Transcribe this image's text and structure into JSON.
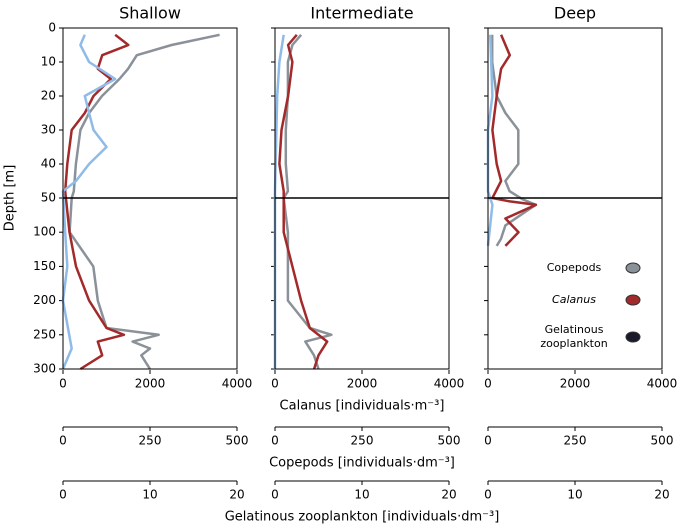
{
  "chart_data": [
    {
      "type": "line",
      "title": "Shallow",
      "ylabel": "Depth [m]",
      "ylim": [
        0,
        300
      ],
      "ybreak": 50,
      "yticks": [
        0,
        10,
        20,
        30,
        40,
        50,
        100,
        150,
        200,
        250,
        300
      ],
      "xlim": [
        0,
        4000
      ],
      "xticks": [
        0,
        2000,
        4000
      ],
      "x2lim": [
        0,
        500
      ],
      "x2ticks": [
        0,
        250,
        500
      ],
      "x3lim": [
        0,
        20
      ],
      "x3ticks": [
        0,
        10,
        20
      ],
      "series": [
        {
          "name": "Copepods",
          "color": "#8a9199",
          "axis": "x2",
          "y": [
            2,
            5,
            8,
            12,
            15,
            20,
            25,
            30,
            40,
            48,
            50,
            100,
            150,
            200,
            240,
            250,
            260,
            270,
            280,
            300
          ],
          "values": [
            450,
            312,
            212,
            187,
            162,
            112,
            75,
            50,
            37,
            31,
            25,
            19,
            87,
            100,
            125,
            275,
            200,
            250,
            225,
            250
          ]
        },
        {
          "name": "Calanus",
          "color": "#a32a2a",
          "axis": "x",
          "y": [
            2,
            5,
            8,
            12,
            15,
            20,
            25,
            30,
            40,
            48,
            100,
            150,
            200,
            240,
            250,
            260,
            280,
            300
          ],
          "values": [
            1200,
            1500,
            900,
            800,
            1100,
            700,
            500,
            200,
            100,
            50,
            150,
            300,
            600,
            1000,
            1400,
            800,
            900,
            400
          ]
        },
        {
          "name": "Gelatinous zooplankton",
          "color": "#8fbbe8",
          "axis": "x3",
          "y": [
            2,
            5,
            10,
            15,
            20,
            25,
            30,
            35,
            40,
            45,
            48,
            100,
            150,
            200,
            270,
            300
          ],
          "values": [
            2.5,
            2,
            3,
            6,
            2.5,
            3,
            3.5,
            5,
            3,
            1.5,
            0,
            0.25,
            0.5,
            0,
            1,
            0
          ]
        }
      ]
    },
    {
      "type": "line",
      "title": "Intermediate",
      "xlabel": "Calanus [individuals·m⁻³]",
      "x2label": "Copepods [individuals·dm⁻³]",
      "x3label": "Gelatinous zooplankton [individuals·dm⁻³]",
      "ylim": [
        0,
        300
      ],
      "ybreak": 50,
      "yticks": [
        0,
        10,
        20,
        30,
        40,
        50,
        100,
        150,
        200,
        250,
        300
      ],
      "xlim": [
        0,
        4000
      ],
      "xticks": [
        0,
        2000,
        4000
      ],
      "x2lim": [
        0,
        500
      ],
      "x2ticks": [
        0,
        250,
        500
      ],
      "x3lim": [
        0,
        20
      ],
      "x3ticks": [
        0,
        10,
        20
      ],
      "series": [
        {
          "name": "Copepods",
          "color": "#8a9199",
          "axis": "x2",
          "y": [
            2,
            5,
            10,
            20,
            30,
            40,
            48,
            50,
            100,
            150,
            200,
            240,
            250,
            260,
            280,
            300
          ],
          "values": [
            75,
            50,
            37,
            37,
            31,
            31,
            37,
            25,
            37,
            37,
            37,
            100,
            162,
            87,
            112,
            125
          ]
        },
        {
          "name": "Calanus",
          "color": "#a32a2a",
          "axis": "x",
          "y": [
            2,
            5,
            10,
            20,
            30,
            40,
            48,
            100,
            150,
            200,
            240,
            260,
            280,
            300
          ],
          "values": [
            500,
            300,
            400,
            300,
            150,
            100,
            200,
            200,
            400,
            600,
            800,
            1200,
            1000,
            900
          ]
        },
        {
          "name": "Gelatinous zooplankton",
          "color": "#8fbbe8",
          "axis": "x3",
          "y": [
            2,
            10,
            20,
            48,
            100,
            300
          ],
          "values": [
            1,
            0.5,
            0.25,
            0,
            0,
            0
          ]
        }
      ]
    },
    {
      "type": "line",
      "title": "Deep",
      "ylim": [
        0,
        300
      ],
      "ybreak": 50,
      "yticks": [
        0,
        10,
        20,
        30,
        40,
        50,
        100,
        150,
        200,
        250,
        300
      ],
      "xlim": [
        0,
        4000
      ],
      "xticks": [
        0,
        2000,
        4000
      ],
      "x2lim": [
        0,
        500
      ],
      "x2ticks": [
        0,
        250,
        500
      ],
      "x3lim": [
        0,
        20
      ],
      "x3ticks": [
        0,
        10,
        20
      ],
      "series": [
        {
          "name": "Copepods",
          "color": "#8a9199",
          "axis": "x2",
          "y": [
            2,
            10,
            20,
            25,
            30,
            40,
            45,
            48,
            52,
            60,
            90,
            110,
            120
          ],
          "values": [
            12,
            12,
            25,
            50,
            87,
            87,
            50,
            62,
            100,
            137,
            50,
            37,
            25
          ]
        },
        {
          "name": "Calanus",
          "color": "#a32a2a",
          "axis": "x",
          "y": [
            2,
            8,
            12,
            20,
            30,
            40,
            45,
            50,
            55,
            60,
            80,
            100,
            120
          ],
          "values": [
            300,
            500,
            300,
            200,
            100,
            200,
            300,
            100,
            500,
            1100,
            400,
            700,
            400
          ]
        },
        {
          "name": "Gelatinous zooplankton",
          "color": "#8fbbe8",
          "axis": "x3",
          "y": [
            2,
            20,
            30,
            48,
            60,
            120
          ],
          "values": [
            0.25,
            0.5,
            0,
            0,
            0.5,
            0
          ]
        }
      ]
    }
  ]
}
